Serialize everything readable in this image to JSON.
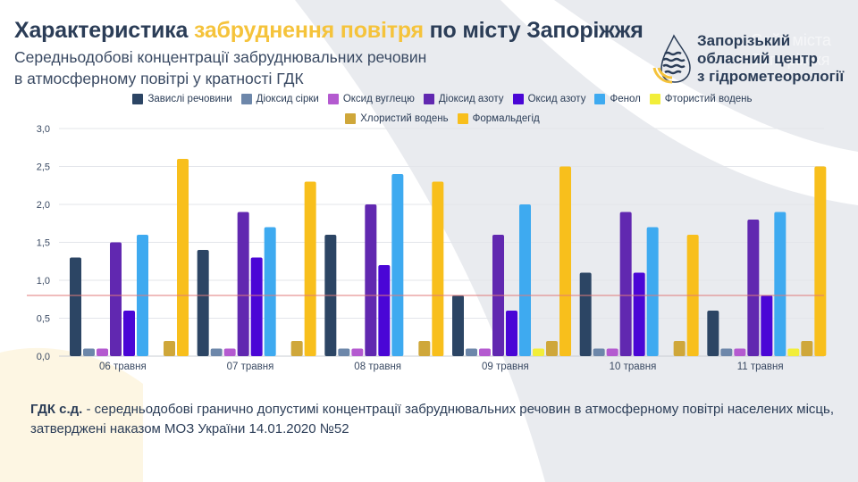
{
  "header": {
    "title_part1": "Характеристика ",
    "title_highlight": "забруднення повітря",
    "title_part2": " по місту Запоріжжя",
    "subtitle_line1": "Середньодобові концентрації забруднювальних речовин",
    "subtitle_line2": "в атмосферному повітрі у кратності ГДК"
  },
  "organization": {
    "line1": "Запорізький",
    "line2": "обласний центр",
    "line3": "з гідрометеорології",
    "logo_icon": "water-drop-waves-icon"
  },
  "watermark": {
    "line1": "Сайт міста",
    "line2": "Запоріжжя"
  },
  "colors": {
    "accent_yellow": "#f5c33b",
    "title_dark": "#2b3d57",
    "threshold_line": "#e07a7a"
  },
  "footnote": {
    "term": "ГДК с.д.",
    "text": " - середньодобові гранично допустимі концентрації забруднювальних речовин в атмосферному повітрі населених місць, затверджені наказом МОЗ України 14.01.2020 №52"
  },
  "chart_data": {
    "type": "bar",
    "title": "",
    "xlabel": "",
    "ylabel": "",
    "ylim": [
      0,
      3.0
    ],
    "yticks": [
      "0,0",
      "0,5",
      "1,0",
      "1,5",
      "2,0",
      "2,5",
      "3,0"
    ],
    "ytick_values": [
      0,
      0.5,
      1.0,
      1.5,
      2.0,
      2.5,
      3.0
    ],
    "grid": true,
    "legend_position": "top-center",
    "threshold": 0.8,
    "categories": [
      "06 травня",
      "07 травня",
      "08 травня",
      "09 травня",
      "10 травня",
      "11 травня"
    ],
    "series": [
      {
        "name": "Завислі речовини",
        "color": "#2c4564",
        "values": [
          1.3,
          1.4,
          1.6,
          0.8,
          1.1,
          0.6
        ]
      },
      {
        "name": "Діоксид сірки",
        "color": "#6d87aa",
        "values": [
          0.1,
          0.1,
          0.1,
          0.1,
          0.1,
          0.1
        ]
      },
      {
        "name": "Оксид вуглецю",
        "color": "#b45ad0",
        "values": [
          0.1,
          0.1,
          0.1,
          0.1,
          0.1,
          0.1
        ]
      },
      {
        "name": "Діоксид азоту",
        "color": "#6128b0",
        "values": [
          1.5,
          1.9,
          2.0,
          1.6,
          1.9,
          1.8
        ]
      },
      {
        "name": "Оксид азоту",
        "color": "#4a06d6",
        "values": [
          0.6,
          1.3,
          1.2,
          0.6,
          1.1,
          0.8
        ]
      },
      {
        "name": "Фенол",
        "color": "#3eaaf0",
        "values": [
          1.6,
          1.7,
          2.4,
          2.0,
          1.7,
          1.9
        ]
      },
      {
        "name": "Фтористий водень",
        "color": "#f2ee3a",
        "values": [
          0,
          0,
          0,
          0.1,
          0,
          0.1
        ]
      },
      {
        "name": "Хлористий водень",
        "color": "#cfa73a",
        "values": [
          0.2,
          0.2,
          0.2,
          0.2,
          0.2,
          0.2
        ]
      },
      {
        "name": "Формальдегід",
        "color": "#f8bf1c",
        "values": [
          2.6,
          2.3,
          2.3,
          2.5,
          1.6,
          2.5
        ]
      }
    ]
  }
}
